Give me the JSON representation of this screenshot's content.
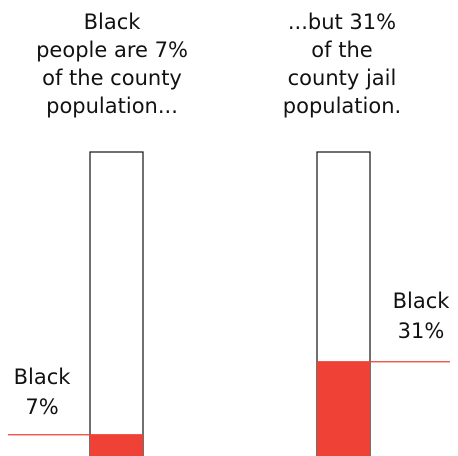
{
  "colors": {
    "background": "#ffffff",
    "bar_fill": "#ffffff",
    "bar_outline": "#111111",
    "highlight": "#ef4135",
    "text": "#111111"
  },
  "chart_data": {
    "type": "bar",
    "stacked_to": 100,
    "ylim": [
      0,
      100
    ],
    "grid": false,
    "legend": "none",
    "bars": [
      {
        "heading": "Black\npeople are 7%\nof the county\npopulation...",
        "label_line1": "Black",
        "label_line2": "7%",
        "value": 7
      },
      {
        "heading": "...but 31%\nof the\ncounty jail\npopulation.",
        "label_line1": "Black",
        "label_line2": "31%",
        "value": 31
      }
    ]
  }
}
